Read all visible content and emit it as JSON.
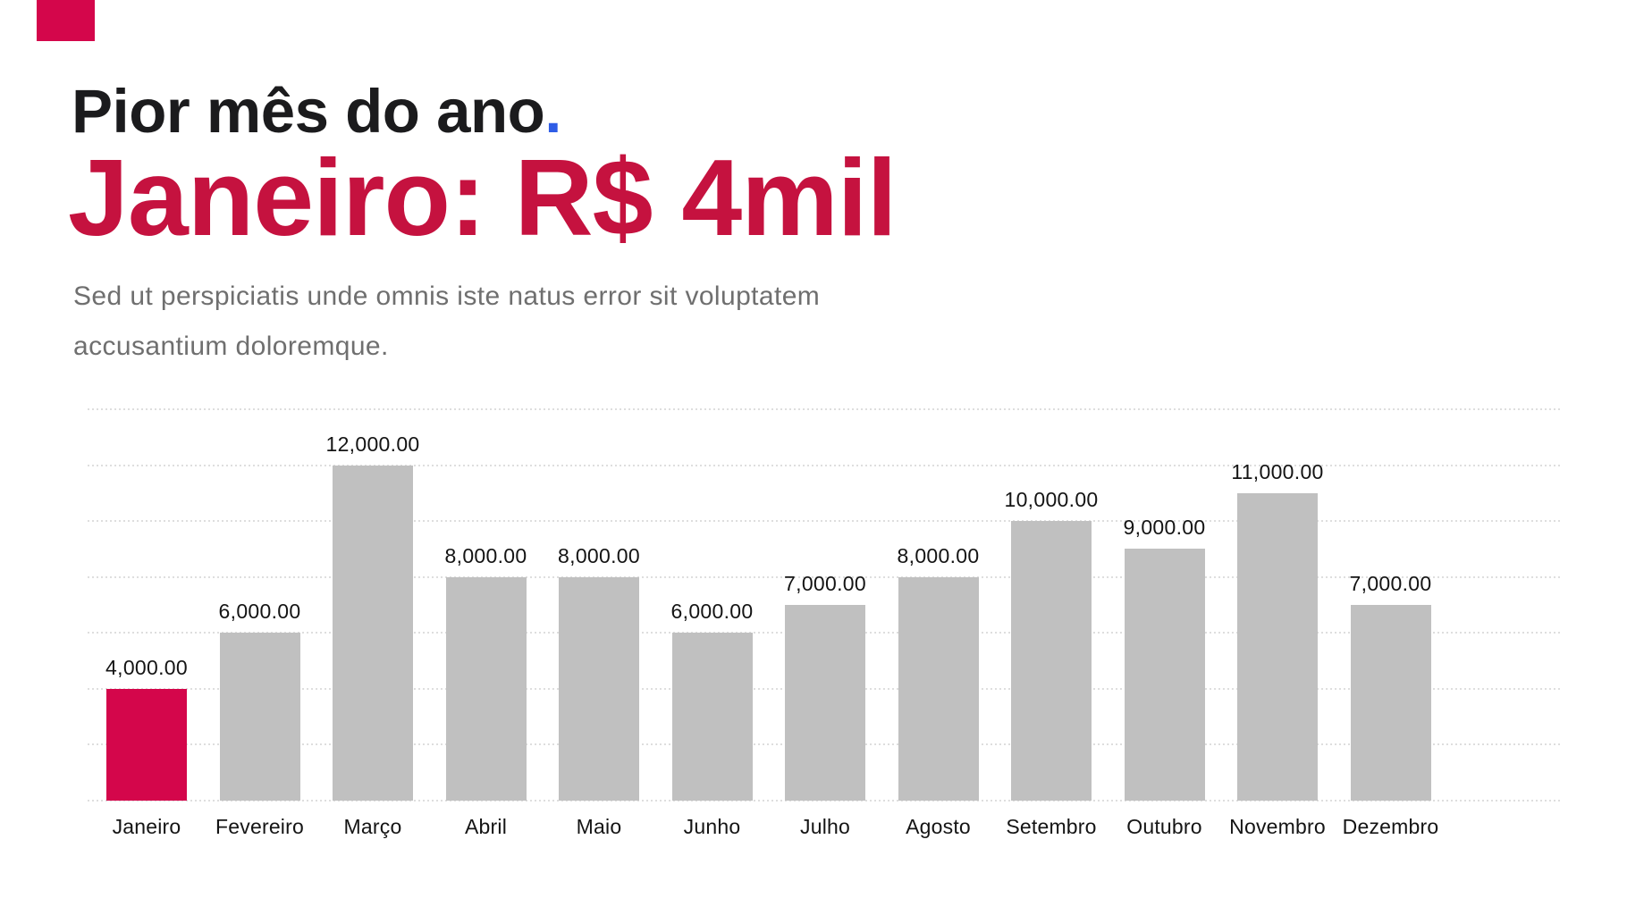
{
  "slide": {
    "kicker": "Pior mês do ano",
    "kicker_period": ".",
    "title": "Janeiro: R$ 4mil",
    "subtitle_lines": [
      "Sed ut perspiciatis unde omnis iste natus error sit voluptatem",
      "accusantium doloremque."
    ],
    "colors": {
      "kicker_text": "#1b1b1d",
      "kicker_period": "#2e5ce6",
      "title": "#c5123f",
      "subtitle": "#6f6f6f",
      "corner_accent": "#d4064b"
    }
  },
  "chart_data": {
    "type": "bar",
    "title": "",
    "xlabel": "",
    "ylabel": "",
    "categories": [
      "Janeiro",
      "Fevereiro",
      "Março",
      "Abril",
      "Maio",
      "Junho",
      "Julho",
      "Agosto",
      "Setembro",
      "Outubro",
      "Novembro",
      "Dezembro"
    ],
    "values": [
      4000,
      6000,
      12000,
      8000,
      8000,
      6000,
      7000,
      8000,
      10000,
      9000,
      11000,
      7000
    ],
    "value_labels": [
      "4,000.00",
      "6,000.00",
      "12,000.00",
      "8,000.00",
      "8,000.00",
      "6,000.00",
      "7,000.00",
      "8,000.00",
      "10,000.00",
      "9,000.00",
      "11,000.00",
      "7,000.00"
    ],
    "highlight_index": 0,
    "highlighted_category": "Janeiro",
    "ylim": [
      0,
      14000
    ],
    "gridline_step": 2000,
    "grid_style": "dotted-horizontal",
    "legend": "none",
    "colors": {
      "bar": "#c0c0c0",
      "bar_highlight": "#d4064b",
      "gridline": "#dedede",
      "value_label": "#141414",
      "category_label": "#141414"
    }
  }
}
